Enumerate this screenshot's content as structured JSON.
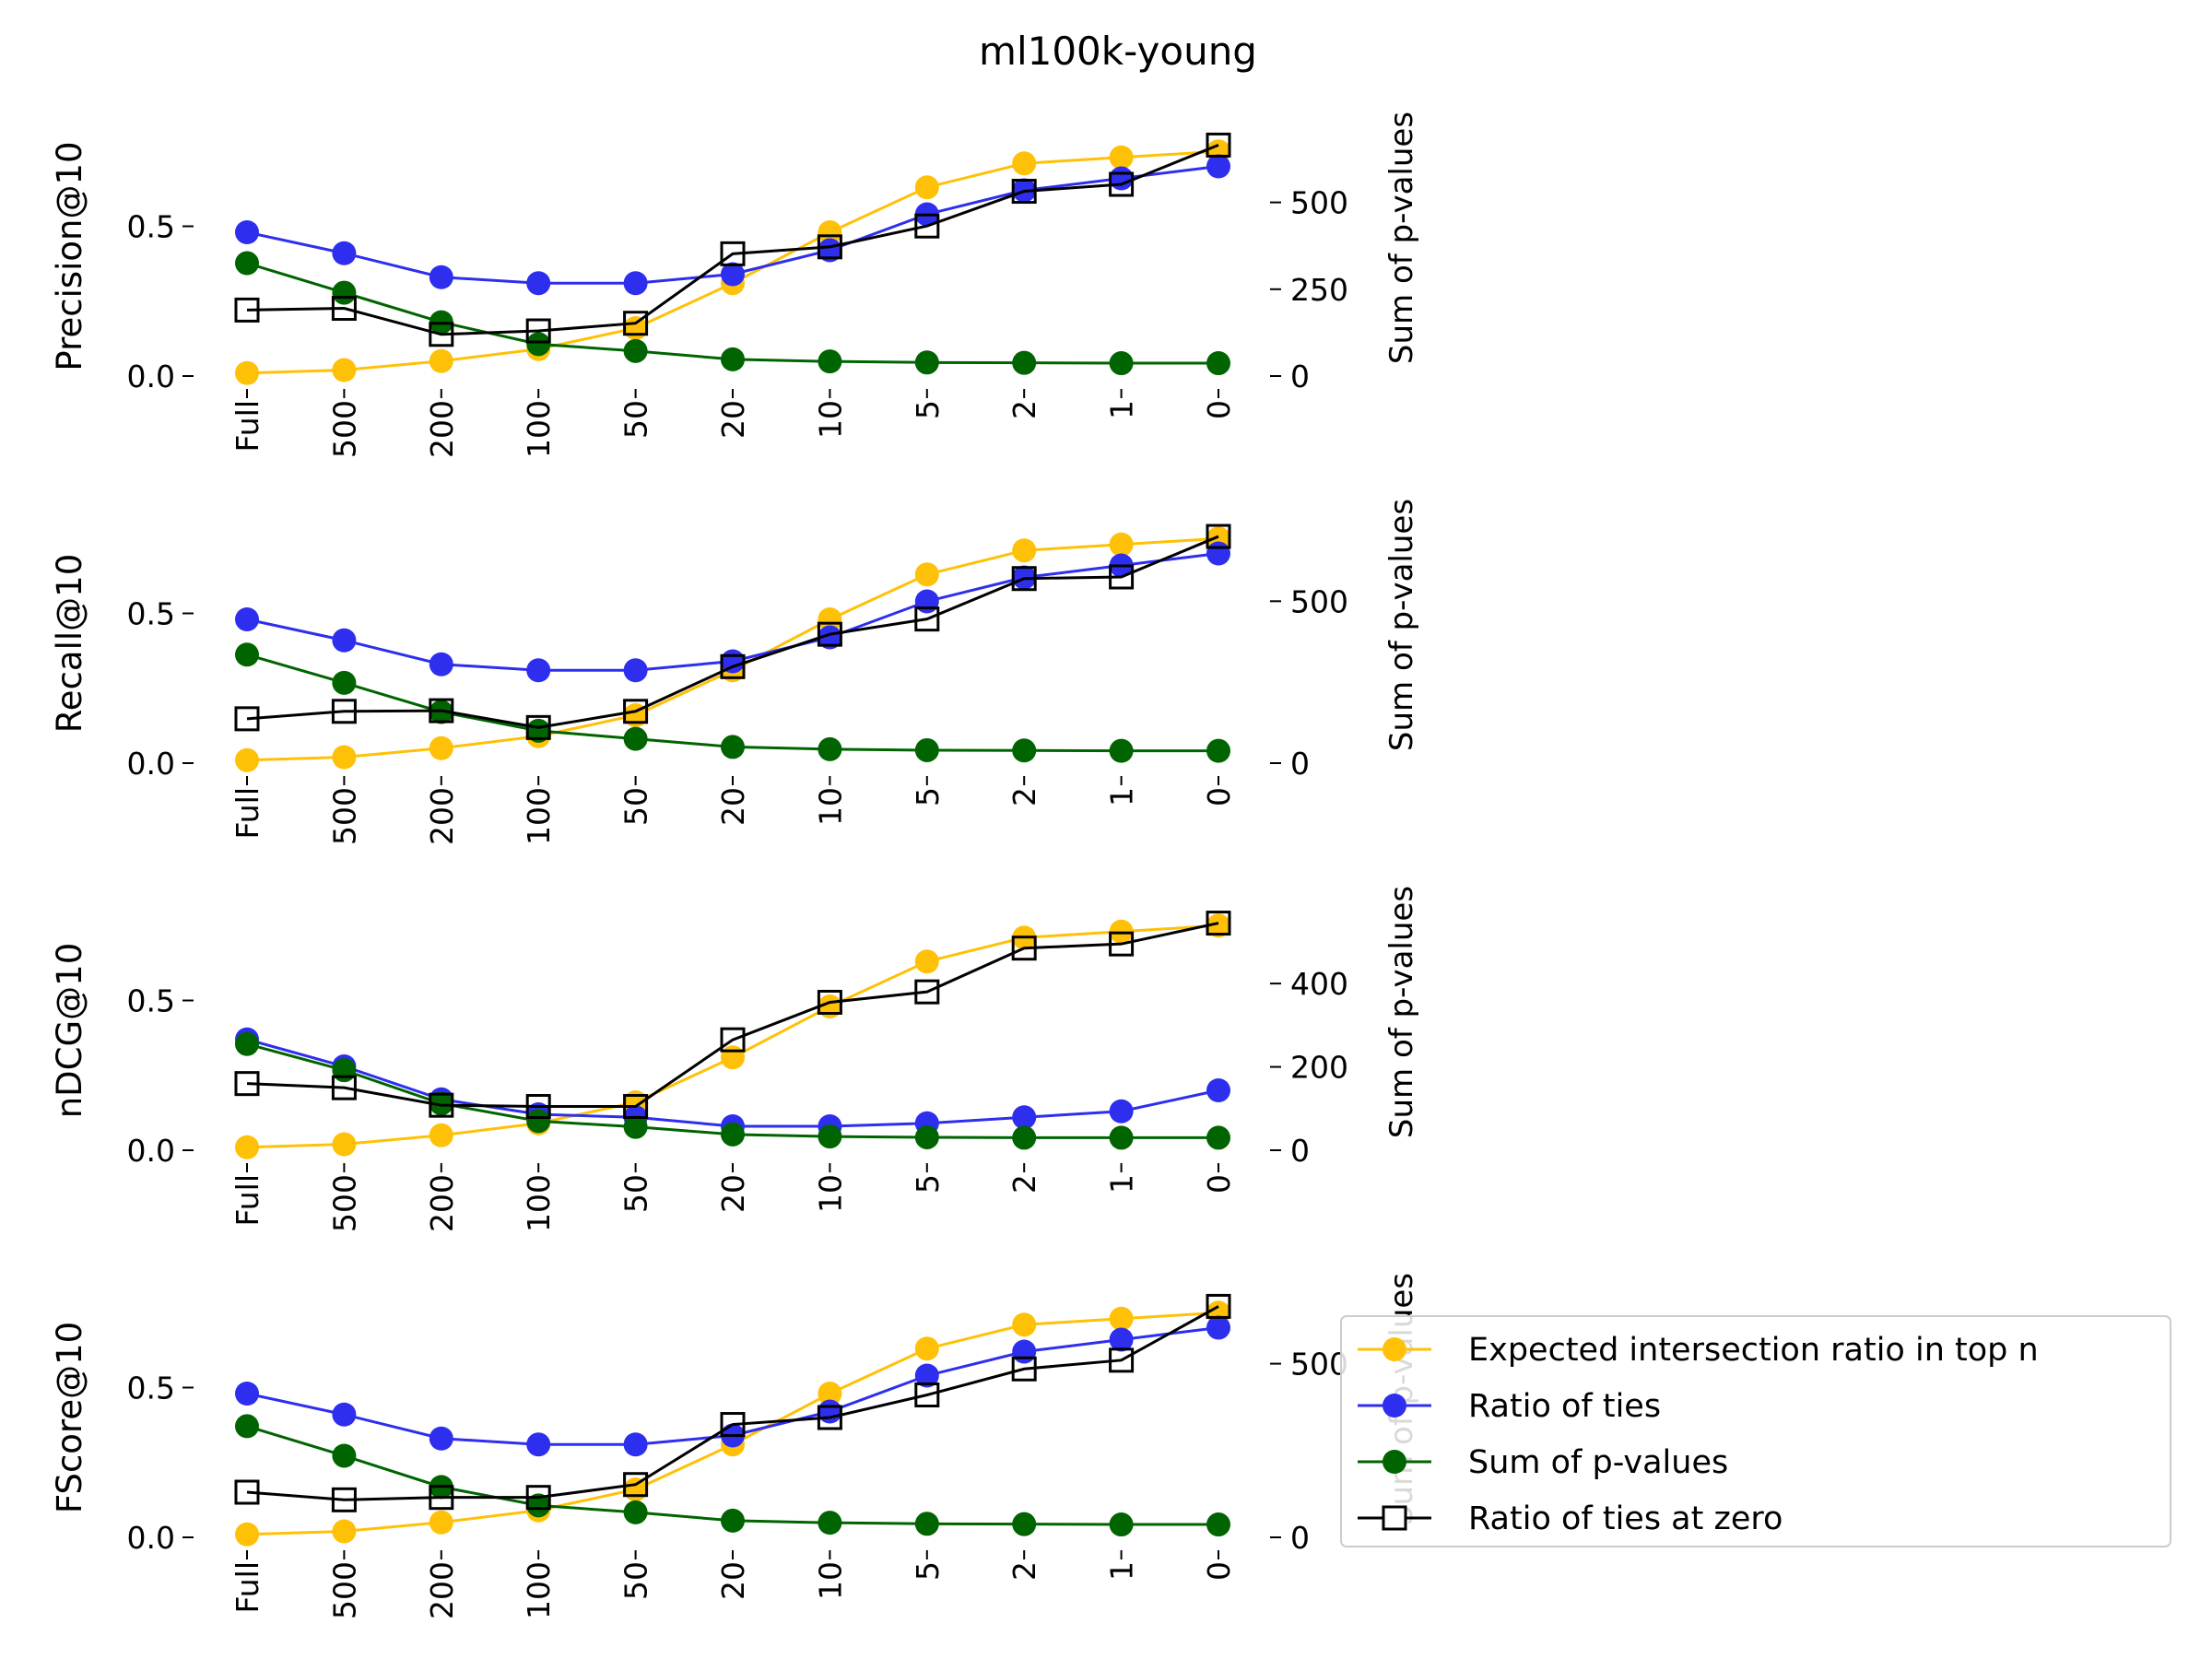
{
  "title": "ml100k-young",
  "chart_data": {
    "type": "line",
    "categories": [
      "Full",
      "500",
      "200",
      "100",
      "50",
      "20",
      "10",
      "5",
      "2",
      "1",
      "0"
    ],
    "legend": {
      "position": "lower-right",
      "entries": [
        {
          "label": "Expected intersection ratio in top n",
          "color": "#FFC107",
          "marker": "circle"
        },
        {
          "label": "Ratio of ties",
          "color": "#2E2EEE",
          "marker": "circle"
        },
        {
          "label": "Sum of p-values",
          "color": "#006400",
          "marker": "circle"
        },
        {
          "label": "Ratio of ties at zero",
          "color": "#000000",
          "marker": "square-open"
        }
      ]
    },
    "panels": [
      {
        "ylabel": "Precision@10",
        "ylim": [
          0,
          0.8
        ],
        "yticks": [
          0.0,
          0.5
        ],
        "ytick_labels": [
          "0.0",
          "0.5"
        ],
        "right_ylabel": "Sum of p-values",
        "right_ylim": [
          0,
          690
        ],
        "right_yticks": [
          0,
          250,
          500
        ],
        "right_ytick_labels": [
          "0",
          "250",
          "500"
        ],
        "series": [
          {
            "name": "Expected intersection ratio in top n",
            "axis": "left",
            "values": [
              0.01,
              0.02,
              0.05,
              0.09,
              0.16,
              0.31,
              0.48,
              0.63,
              0.71,
              0.73,
              0.75
            ]
          },
          {
            "name": "Ratio of ties",
            "axis": "left",
            "values": [
              0.48,
              0.41,
              0.33,
              0.31,
              0.31,
              0.34,
              0.42,
              0.54,
              0.62,
              0.66,
              0.7
            ]
          },
          {
            "name": "Sum of p-values",
            "axis": "right",
            "values": [
              325,
              240,
              155,
              92,
              72,
              48,
              42,
              39,
              38,
              37,
              37
            ]
          },
          {
            "name": "Ratio of ties at zero",
            "axis": "right",
            "values": [
              190,
              195,
              120,
              130,
              152,
              352,
              372,
              432,
              532,
              552,
              665
            ]
          }
        ]
      },
      {
        "ylabel": "Recall@10",
        "ylim": [
          0,
          0.8
        ],
        "yticks": [
          0.0,
          0.5
        ],
        "ytick_labels": [
          "0.0",
          "0.5"
        ],
        "right_ylabel": "Sum of p-values",
        "right_ylim": [
          0,
          740
        ],
        "right_yticks": [
          0,
          500
        ],
        "right_ytick_labels": [
          "0",
          "500"
        ],
        "series": [
          {
            "name": "Expected intersection ratio in top n",
            "axis": "left",
            "values": [
              0.01,
              0.02,
              0.05,
              0.09,
              0.16,
              0.31,
              0.48,
              0.63,
              0.71,
              0.73,
              0.75
            ]
          },
          {
            "name": "Ratio of ties",
            "axis": "left",
            "values": [
              0.48,
              0.41,
              0.33,
              0.31,
              0.31,
              0.34,
              0.42,
              0.54,
              0.62,
              0.66,
              0.7
            ]
          },
          {
            "name": "Sum of p-values",
            "axis": "right",
            "values": [
              335,
              248,
              158,
              100,
              75,
              50,
              43,
              40,
              39,
              38,
              38
            ]
          },
          {
            "name": "Ratio of ties at zero",
            "axis": "right",
            "values": [
              137,
              160,
              162,
              110,
              160,
              298,
              398,
              445,
              570,
              575,
              700
            ]
          }
        ]
      },
      {
        "ylabel": "nDCG@10",
        "ylim": [
          0,
          0.8
        ],
        "yticks": [
          0.0,
          0.5
        ],
        "ytick_labels": [
          "0.0",
          "0.5"
        ],
        "right_ylabel": "Sum of p-values",
        "right_ylim": [
          0,
          575
        ],
        "right_yticks": [
          0,
          200,
          400
        ],
        "right_ytick_labels": [
          "0",
          "200",
          "400"
        ],
        "series": [
          {
            "name": "Expected intersection ratio in top n",
            "axis": "left",
            "values": [
              0.01,
              0.02,
              0.05,
              0.09,
              0.16,
              0.31,
              0.48,
              0.63,
              0.71,
              0.73,
              0.75
            ]
          },
          {
            "name": "Ratio of ties",
            "axis": "left",
            "values": [
              0.37,
              0.28,
              0.17,
              0.12,
              0.11,
              0.08,
              0.08,
              0.09,
              0.11,
              0.13,
              0.2
            ]
          },
          {
            "name": "Sum of p-values",
            "axis": "right",
            "values": [
              255,
              192,
              112,
              70,
              56,
              38,
              33,
              31,
              30,
              30,
              30
            ]
          },
          {
            "name": "Ratio of ties at zero",
            "axis": "right",
            "values": [
              160,
              150,
              108,
              105,
              105,
              265,
              355,
              380,
              485,
              495,
              545
            ]
          }
        ]
      },
      {
        "ylabel": "FScore@10",
        "ylim": [
          0,
          0.8
        ],
        "yticks": [
          0.0,
          0.5
        ],
        "ytick_labels": [
          "0.0",
          "0.5"
        ],
        "right_ylabel": "Sum of p-values",
        "right_ylim": [
          0,
          690
        ],
        "right_yticks": [
          0,
          500
        ],
        "right_ytick_labels": [
          "0",
          "500"
        ],
        "series": [
          {
            "name": "Expected intersection ratio in top n",
            "axis": "left",
            "values": [
              0.01,
              0.02,
              0.05,
              0.09,
              0.16,
              0.31,
              0.48,
              0.63,
              0.71,
              0.73,
              0.75
            ]
          },
          {
            "name": "Ratio of ties",
            "axis": "left",
            "values": [
              0.48,
              0.41,
              0.33,
              0.31,
              0.31,
              0.34,
              0.42,
              0.54,
              0.62,
              0.66,
              0.7
            ]
          },
          {
            "name": "Sum of p-values",
            "axis": "right",
            "values": [
              320,
              235,
              145,
              92,
              72,
              48,
              42,
              39,
              38,
              37,
              37
            ]
          },
          {
            "name": "Ratio of ties at zero",
            "axis": "right",
            "values": [
              130,
              108,
              115,
              115,
              152,
              325,
              345,
              410,
              485,
              510,
              665
            ]
          }
        ]
      }
    ]
  }
}
